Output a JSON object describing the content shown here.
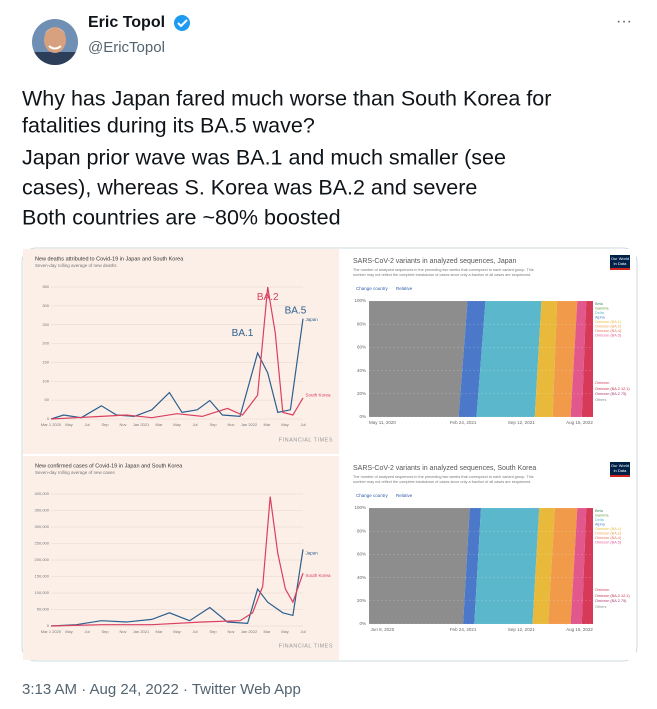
{
  "header": {
    "name": "Eric Topol",
    "handle": "@EricTopol",
    "more": "···"
  },
  "tweet": {
    "lines": [
      "Why has Japan fared much worse than South Korea for",
      "fatalities during its BA.5 wave?",
      "Japan prior wave was BA.1 and much smaller (see",
      "cases), whereas S. Korea was BA.2 and severe",
      "Both countries are ~80% boosted"
    ]
  },
  "media": {
    "panels": [
      {
        "kind": "ft",
        "title": "New deaths attributed to Covid-19 in Japan and South Korea",
        "subtitle": "Seven-day rolling average of new deaths",
        "yticks": [
          "350",
          "300",
          "250",
          "200",
          "150",
          "100",
          "50",
          "0"
        ],
        "xticks": [
          "Mar 1 2020",
          "May",
          "Jul",
          "Sep",
          "Nov",
          "Jan 2021",
          "Mar",
          "May",
          "Jul",
          "Sep",
          "Nov",
          "Jan 2022",
          "Mar",
          "May",
          "Jul"
        ],
        "labels": [
          {
            "text": "BA.2",
            "color": "#d9405f"
          },
          {
            "text": "BA.1",
            "color": "#2d5f8e"
          },
          {
            "text": "BA.5",
            "color": "#2d5f8e"
          },
          {
            "text": "Japan",
            "color": "#2d5f8e"
          },
          {
            "text": "South Korea",
            "color": "#d9405f"
          }
        ],
        "source": "FINANCIAL TIMES"
      },
      {
        "kind": "owid",
        "title": "SARS-CoV-2 variants in analyzed sequences, Japan",
        "description": [
          "The number of analyzed sequences in the preceding two weeks that correspond to each variant group. This",
          "number may not reflect the complete breakdown of cases since only a fraction of all cases are sequenced."
        ],
        "buttons": [
          "Change country",
          "Relative"
        ],
        "yticks": [
          "100%",
          "80%",
          "60%",
          "40%",
          "20%",
          "0%"
        ],
        "xticks": [
          "May 11, 2020",
          "Feb 24, 2021",
          "Sep 12, 2021",
          "Aug 15, 2022"
        ],
        "legend": [
          {
            "name": "Beta",
            "color": "#3f8f6a"
          },
          {
            "name": "Gamma",
            "color": "#6a9a3c"
          },
          {
            "name": "Delta",
            "color": "#5bb8cc"
          },
          {
            "name": "Alpha",
            "color": "#4b78c8"
          },
          {
            "name": "Omicron (BA.1)",
            "color": "#e8b93a"
          },
          {
            "name": "Omicron (BA.2)",
            "color": "#f09a4a"
          },
          {
            "name": "Omicron (BA.4)",
            "color": "#e6705e"
          },
          {
            "name": "Omicron (BA.5)",
            "color": "#e2588c"
          },
          {
            "name": "Omicron",
            "color": "#d63a58"
          },
          {
            "name": "Omicron (BA.2.12.1)",
            "color": "#c0304a"
          },
          {
            "name": "Omicron (BA.2.75)",
            "color": "#a33a6a"
          },
          {
            "name": "Others",
            "color": "#8d8d8d"
          }
        ],
        "brand": [
          "Our World",
          "in Data"
        ]
      },
      {
        "kind": "ft",
        "title": "New confirmed cases of Covid-19 in Japan and South Korea",
        "subtitle": "Seven-day rolling average of new cases",
        "yticks": [
          "400,000",
          "350,000",
          "300,000",
          "250,000",
          "200,000",
          "150,000",
          "100,000",
          "50,000",
          "0"
        ],
        "xticks": [
          "Mar 1 2020",
          "May",
          "Jul",
          "Sep",
          "Nov",
          "Jan 2021",
          "Mar",
          "May",
          "Jul",
          "Sep",
          "Nov",
          "Jan 2022",
          "Mar",
          "May",
          "Jul"
        ],
        "labels": [
          {
            "text": "Japan",
            "color": "#2d5f8e"
          },
          {
            "text": "South Korea",
            "color": "#d9405f"
          }
        ],
        "source": "FINANCIAL TIMES"
      },
      {
        "kind": "owid",
        "title": "SARS-CoV-2 variants in analyzed sequences, South Korea",
        "description": [
          "The number of analyzed sequences in the preceding two weeks that correspond to each variant group. This",
          "number may not reflect the complete breakdown of cases since only a fraction of all cases are sequenced."
        ],
        "buttons": [
          "Change country",
          "Relative"
        ],
        "yticks": [
          "100%",
          "80%",
          "60%",
          "40%",
          "20%",
          "0%"
        ],
        "xticks": [
          "Jun 8, 2020",
          "Feb 24, 2021",
          "Sep 12, 2021",
          "Aug 15, 2022"
        ],
        "legend": [
          {
            "name": "Beta",
            "color": "#3f8f6a"
          },
          {
            "name": "Gamma",
            "color": "#6a9a3c"
          },
          {
            "name": "Delta",
            "color": "#5bb8cc"
          },
          {
            "name": "Alpha",
            "color": "#4b78c8"
          },
          {
            "name": "Omicron (BA.1)",
            "color": "#e8b93a"
          },
          {
            "name": "Omicron (BA.2)",
            "color": "#f09a4a"
          },
          {
            "name": "Omicron (BA.4)",
            "color": "#e6705e"
          },
          {
            "name": "Omicron (BA.5)",
            "color": "#e2588c"
          },
          {
            "name": "Omicron",
            "color": "#d63a58"
          },
          {
            "name": "Omicron (BA.2.12.1)",
            "color": "#c0304a"
          },
          {
            "name": "Omicron (BA.2.75)",
            "color": "#a33a6a"
          },
          {
            "name": "Others",
            "color": "#8d8d8d"
          }
        ],
        "brand": [
          "Our World",
          "in Data"
        ]
      }
    ]
  },
  "footer": {
    "timestamp": "3:13 AM · Aug 24, 2022 · Twitter Web App"
  }
}
